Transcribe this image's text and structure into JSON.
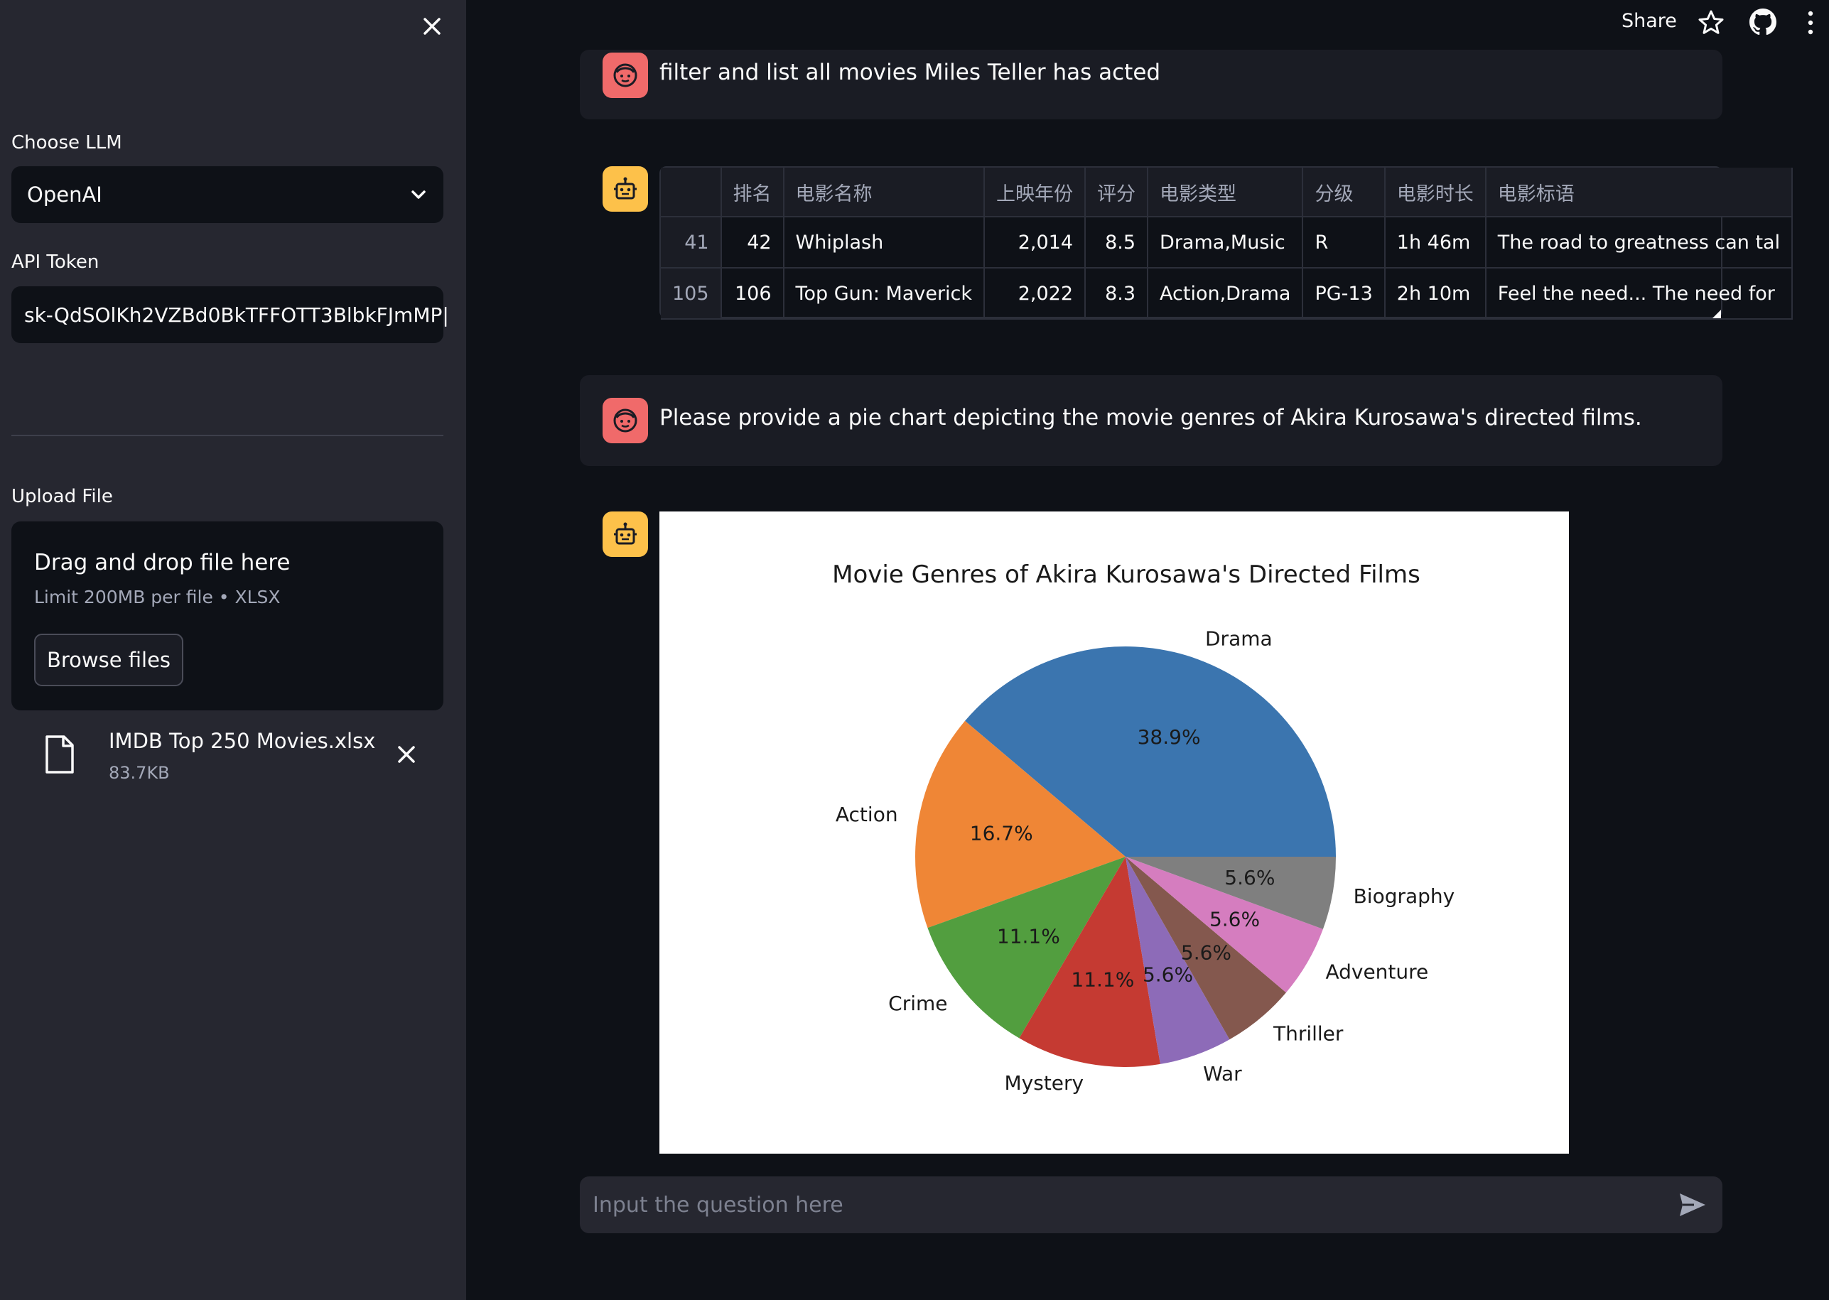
{
  "sidebar": {
    "llm_label": "Choose LLM",
    "llm_value": "OpenAI",
    "token_label": "API Token",
    "token_value": "sk-QdSOlKh2VZBd0BkTFFOTT3BlbkFJmMP|",
    "upload_label": "Upload File",
    "drag_text": "Drag and drop file here",
    "limit_text": "Limit 200MB per file • XLSX",
    "browse_label": "Browse files",
    "file_name": "IMDB Top 250 Movies.xlsx",
    "file_size": "83.7KB"
  },
  "header": {
    "share_label": "Share"
  },
  "chat": {
    "msg1": "filter and list all movies Miles Teller has acted",
    "msg2": "Please provide a pie chart depicting the movie genres of Akira Kurosawa's directed films.",
    "input_placeholder": "Input the question here"
  },
  "table": {
    "headers": [
      "",
      "排名",
      "电影名称",
      "上映年份",
      "评分",
      "电影类型",
      "分级",
      "电影时长",
      "电影标语"
    ],
    "rows": [
      [
        "41",
        "42",
        "Whiplash",
        "2,014",
        "8.5",
        "Drama,Music",
        "R",
        "1h 46m",
        "The road to greatness can tal"
      ],
      [
        "105",
        "106",
        "Top Gun: Maverick",
        "2,022",
        "8.3",
        "Action,Drama",
        "PG-13",
        "2h 10m",
        "Feel the need... The need for"
      ]
    ]
  },
  "colors": {
    "sidebar_bg": "#262730",
    "app_bg": "#0e1117",
    "user_avatar": "#f06a6a",
    "bot_avatar": "#fdc14a"
  },
  "chart_data": {
    "type": "pie",
    "title": "Movie Genres of Akira Kurosawa's Directed Films",
    "categories": [
      "Drama",
      "Action",
      "Crime",
      "Mystery",
      "War",
      "Thriller",
      "Adventure",
      "Biography"
    ],
    "values": [
      38.9,
      16.7,
      11.1,
      11.1,
      5.6,
      5.6,
      5.6,
      5.6
    ],
    "labels": [
      "38.9%",
      "16.7%",
      "11.1%",
      "11.1%",
      "5.6%",
      "5.6%",
      "5.6%",
      "5.6%"
    ],
    "colors": [
      "#3b75af",
      "#ef8636",
      "#529e3f",
      "#c53a32",
      "#8d6bb8",
      "#84584e",
      "#d57dbf",
      "#7f7f7f"
    ]
  }
}
